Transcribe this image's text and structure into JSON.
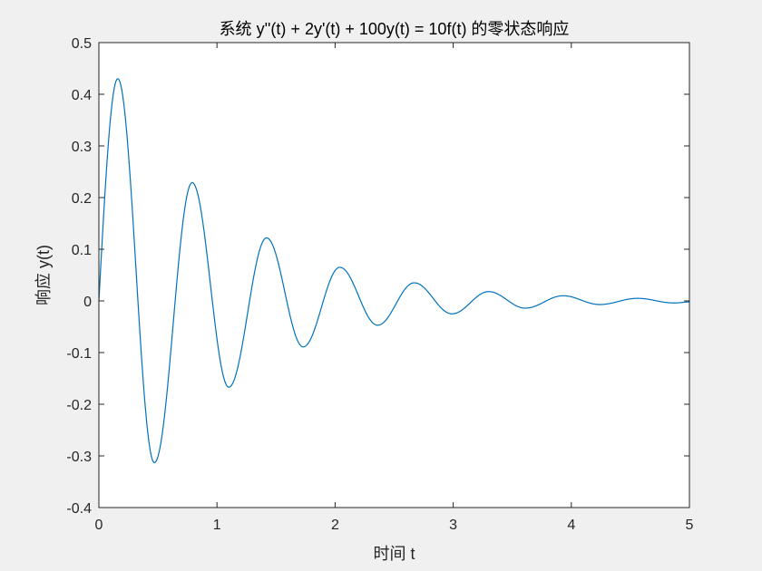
{
  "chart_data": {
    "type": "line",
    "title": "系统 y''(t) + 2y'(t) + 100y(t) = 10f(t) 的零状态响应",
    "xlabel": "时间 t",
    "ylabel": "响应 y(t)",
    "xlim": [
      0,
      5
    ],
    "ylim": [
      -0.4,
      0.5
    ],
    "xticks": [
      0,
      1,
      2,
      3,
      4,
      5
    ],
    "xtick_labels": [
      "0",
      "1",
      "2",
      "3",
      "4",
      "5"
    ],
    "yticks": [
      -0.4,
      -0.3,
      -0.2,
      -0.1,
      0,
      0.1,
      0.2,
      0.3,
      0.4,
      0.5
    ],
    "ytick_labels": [
      "-0.4",
      "-0.3",
      "-0.2",
      "-0.1",
      "0",
      "0.1",
      "0.2",
      "0.3",
      "0.4",
      "0.5"
    ],
    "grid": false,
    "legend": "none",
    "line_color": "#0072BD",
    "series": [
      {
        "x": [
          0,
          0.16,
          0.47,
          0.79,
          1.1,
          1.42,
          1.73,
          2.04,
          2.36,
          2.67,
          2.99,
          3.3,
          3.61,
          3.93,
          4.24,
          4.56,
          4.87,
          5.0
        ],
        "values": [
          0,
          0.43,
          -0.313,
          0.229,
          -0.167,
          0.122,
          -0.089,
          0.065,
          -0.047,
          0.035,
          -0.025,
          0.018,
          -0.014,
          0.01,
          -0.007,
          0.005,
          -0.004,
          -0.002
        ]
      }
    ]
  }
}
